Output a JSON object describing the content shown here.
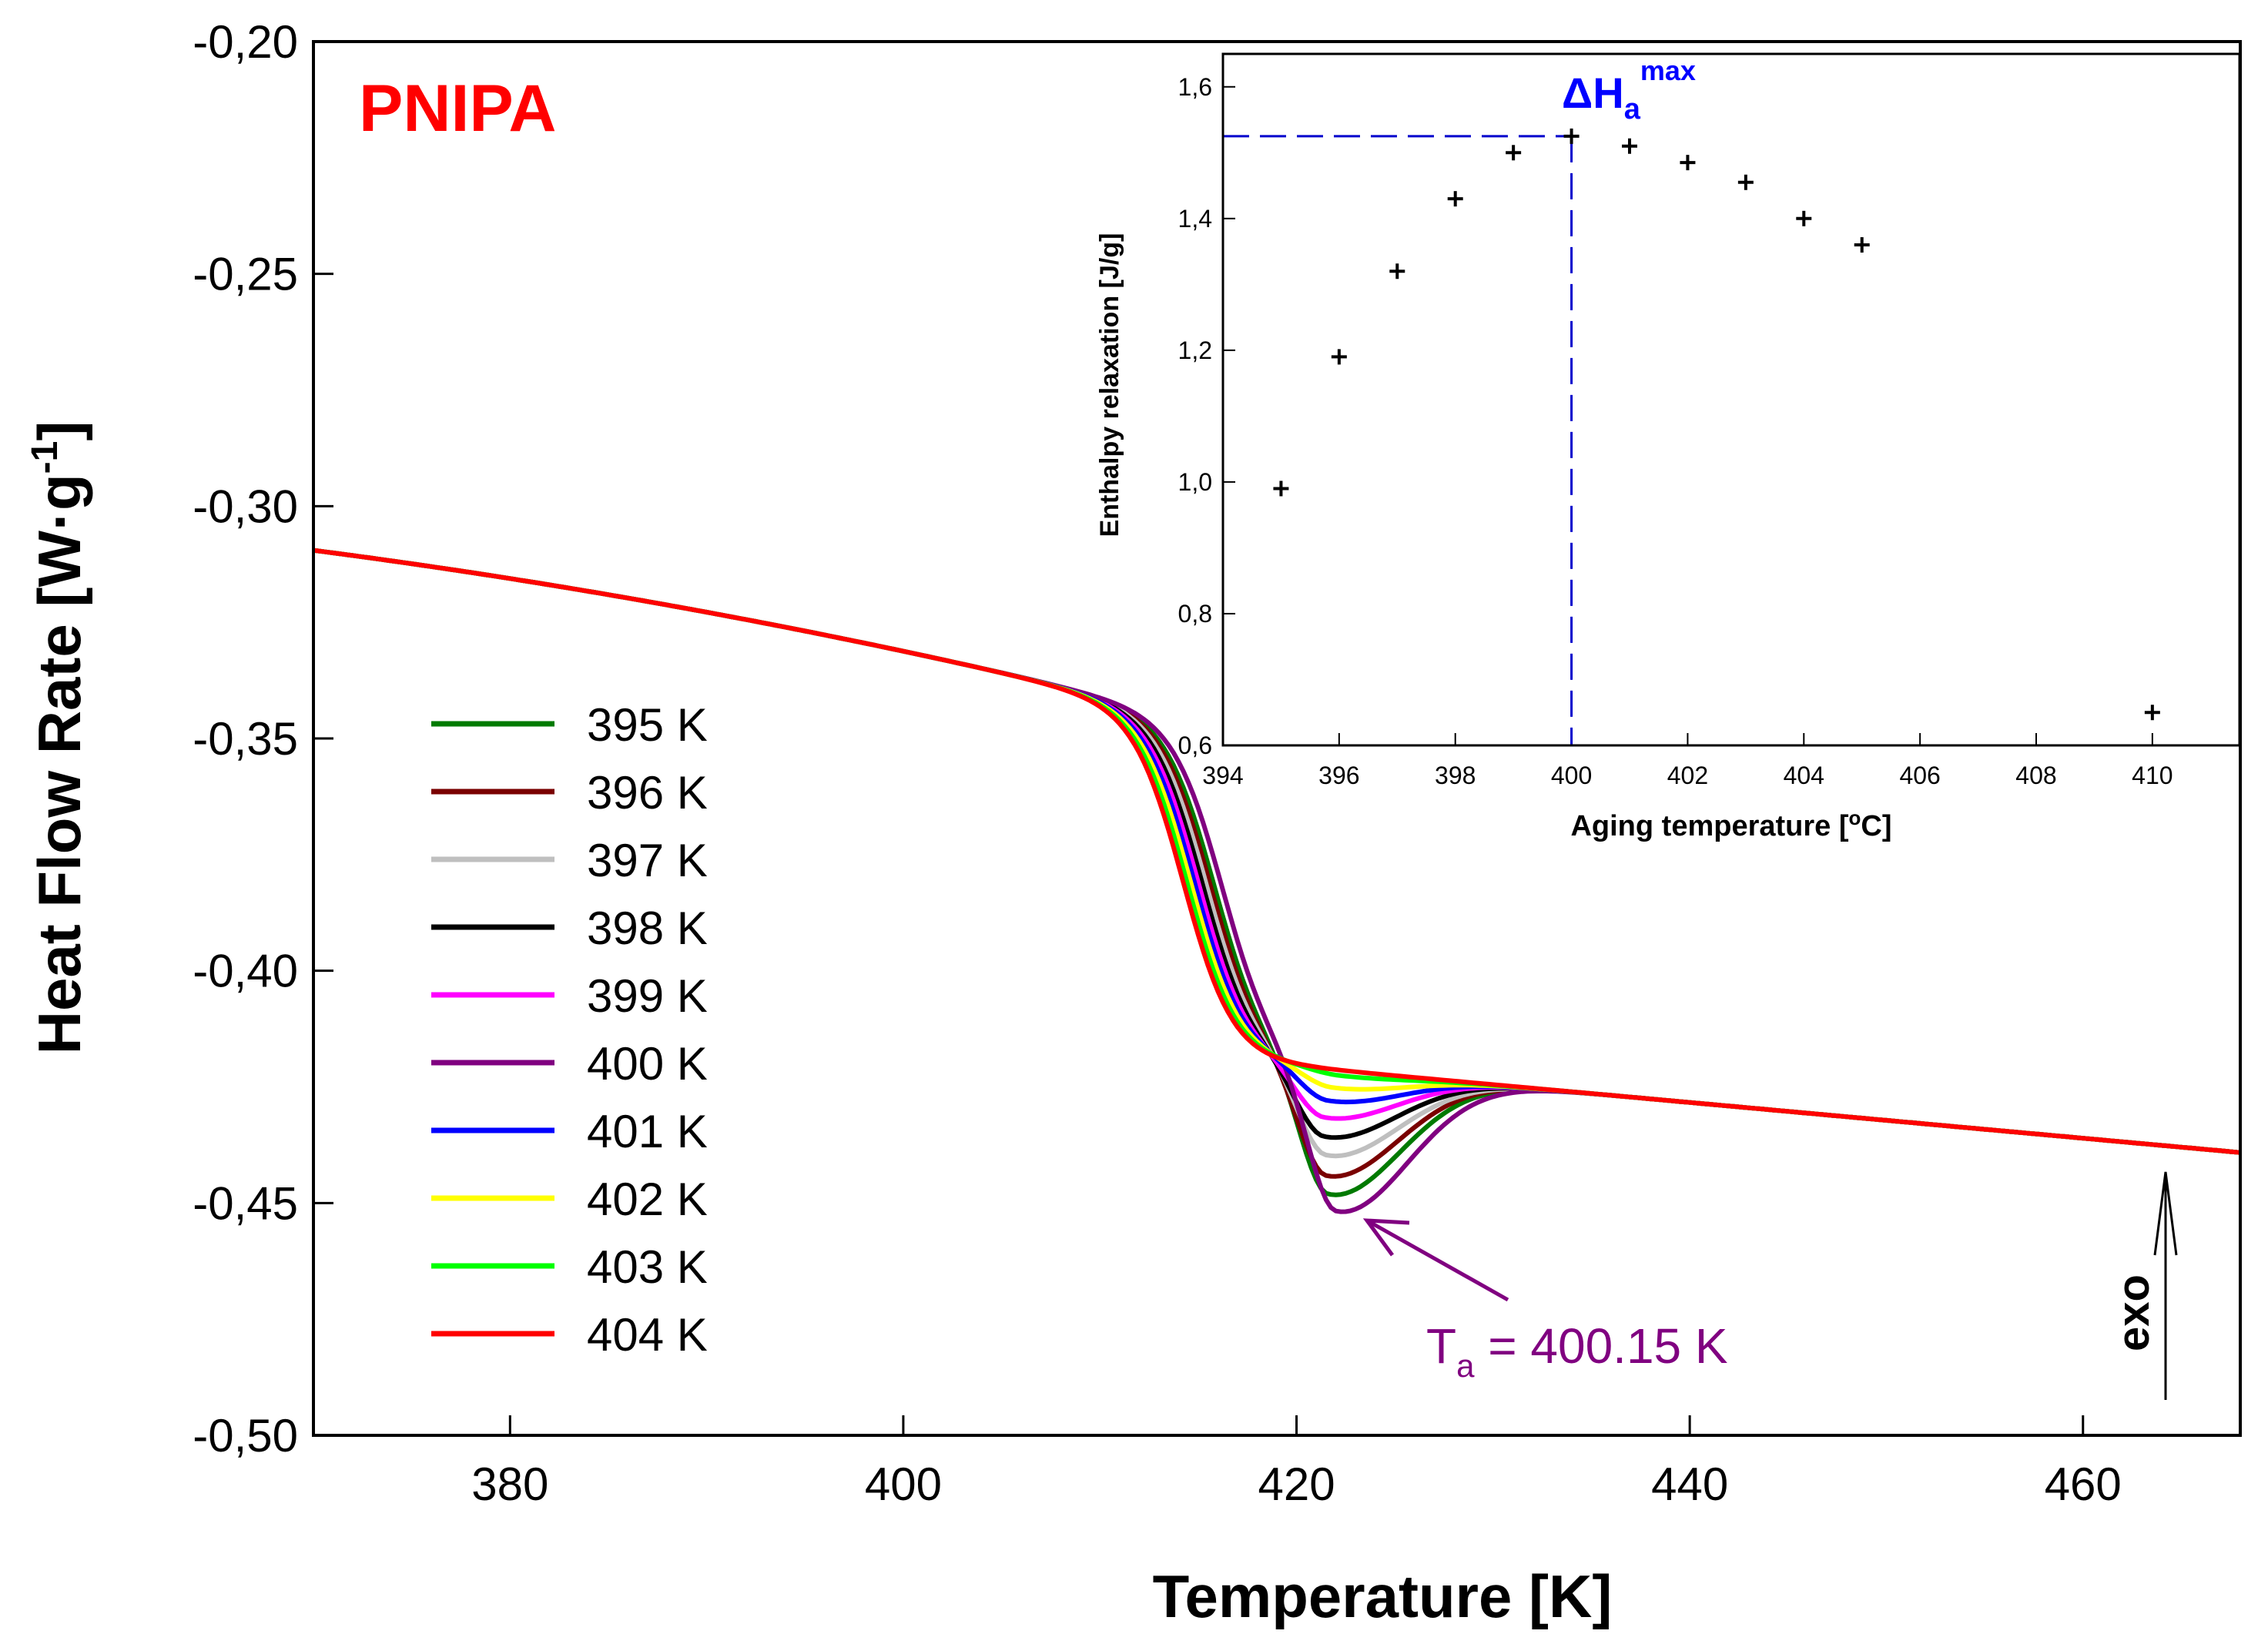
{
  "chart_data": [
    {
      "type": "line",
      "title": "PNIPA",
      "title_color": "#ff0000",
      "xlabel": "Temperature [K]",
      "ylabel": "Heat Flow Rate [W·g-1]",
      "ylabel_parts": {
        "main": "Heat Flow Rate [W·g",
        "sup": "-1",
        "end": "]"
      },
      "xlim": [
        370,
        468
      ],
      "ylim": [
        -0.5,
        -0.2
      ],
      "xticks": [
        380,
        400,
        420,
        440,
        460
      ],
      "xtick_labels": [
        "380",
        "400",
        "420",
        "440",
        "460"
      ],
      "yticks": [
        -0.5,
        -0.45,
        -0.4,
        -0.35,
        -0.3,
        -0.25,
        -0.2
      ],
      "ytick_labels": [
        "-0,50",
        "-0,45",
        "-0,40",
        "-0,35",
        "-0,30",
        "-0,25",
        "-0,20"
      ],
      "legend_position": "left-lower",
      "series": [
        {
          "name": "395 K",
          "color": "#007a00",
          "shift": -0.4,
          "dip": -0.0275,
          "dip_x": 421.6
        },
        {
          "name": "396 K",
          "color": "#7a0000",
          "shift": -0.6,
          "dip": -0.0235,
          "dip_x": 421.5
        },
        {
          "name": "397 K",
          "color": "#bfbfbf",
          "shift": -0.8,
          "dip": -0.019,
          "dip_x": 421.5
        },
        {
          "name": "398 K",
          "color": "#000000",
          "shift": -1.0,
          "dip": -0.015,
          "dip_x": 421.4
        },
        {
          "name": "399 K",
          "color": "#ff00ff",
          "shift": -1.2,
          "dip": -0.0108,
          "dip_x": 421.4
        },
        {
          "name": "400 K",
          "color": "#800080",
          "shift": 0.0,
          "dip": -0.031,
          "dip_x": 422.0
        },
        {
          "name": "401 K",
          "color": "#0000ff",
          "shift": -1.4,
          "dip": -0.007,
          "dip_x": 421.6
        },
        {
          "name": "402 K",
          "color": "#ffff00",
          "shift": -1.6,
          "dip": -0.004,
          "dip_x": 421.8
        },
        {
          "name": "403 K",
          "color": "#00ff00",
          "shift": -1.8,
          "dip": -0.0012,
          "dip_x": 422.2
        },
        {
          "name": "404 K",
          "color": "#ff0000",
          "shift": -2.0,
          "dip": 0.0,
          "dip_x": 422.0
        }
      ],
      "annotations": [
        {
          "text_main": "T",
          "text_sub": "a",
          "text_rest": " = 400.15 K",
          "color": "#800080",
          "target": [
            422.3,
            -0.4555
          ]
        },
        {
          "text": "exo",
          "color": "#000000"
        }
      ]
    },
    {
      "type": "scatter",
      "xlabel_parts": {
        "main": "Aging temperature [",
        "sup": "o",
        "end": "C]"
      },
      "xlabel": "Aging temperature [oC]",
      "ylabel": "Enthalpy relaxation [J/g]",
      "xlim": [
        394,
        411.5
      ],
      "ylim": [
        0.6,
        1.65
      ],
      "xticks": [
        394,
        396,
        398,
        400,
        402,
        404,
        406,
        408,
        410
      ],
      "xtick_labels": [
        "394",
        "396",
        "398",
        "400",
        "402",
        "404",
        "406",
        "408",
        "410"
      ],
      "yticks": [
        0.6,
        0.8,
        1.0,
        1.2,
        1.4,
        1.6
      ],
      "ytick_labels": [
        "0,6",
        "0,8",
        "1,0",
        "1,2",
        "1,4",
        "1,6"
      ],
      "x": [
        395,
        396,
        397,
        398,
        399,
        400,
        401,
        402,
        403,
        404,
        405,
        410
      ],
      "y": [
        0.99,
        1.19,
        1.32,
        1.43,
        1.5,
        1.525,
        1.51,
        1.485,
        1.455,
        1.4,
        1.36,
        0.65
      ],
      "max_marker": {
        "x": 400,
        "y": 1.525,
        "color": "#0000cc"
      },
      "annotation": {
        "main": "ΔH",
        "sub": "a",
        "sup": "max",
        "color": "#0000ff"
      }
    }
  ]
}
